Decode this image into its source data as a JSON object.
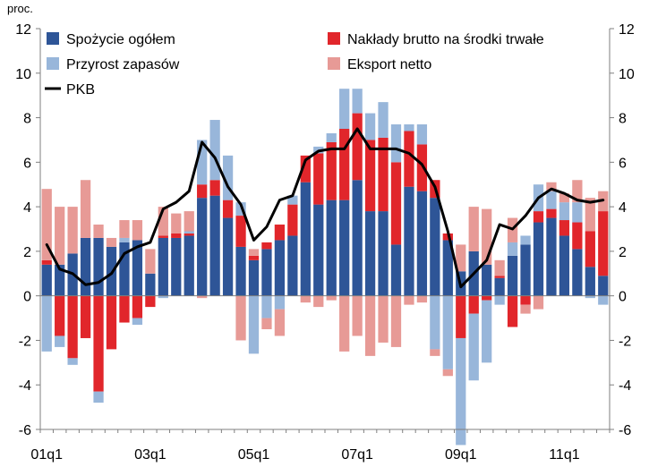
{
  "chart_data": {
    "type": "bar",
    "stacked": true,
    "unit_label": "proc.",
    "ylim": [
      -6,
      12
    ],
    "yticks": [
      -6,
      -4,
      -2,
      0,
      2,
      4,
      6,
      8,
      10,
      12
    ],
    "ylabels": [
      "-6",
      "-4",
      "-2",
      "0",
      "2",
      "4",
      "6",
      "8",
      "10",
      "12"
    ],
    "grid": false,
    "legend": "top",
    "colors": {
      "spozycie": "#2E5597",
      "naklady": "#E1262B",
      "zapasy": "#98B6DA",
      "eksport": "#E79A96",
      "pkb": "#000000"
    },
    "x": [
      "01q1",
      "01q2",
      "01q3",
      "01q4",
      "02q1",
      "02q2",
      "02q3",
      "02q4",
      "03q1",
      "03q2",
      "03q3",
      "03q4",
      "04q1",
      "04q2",
      "04q3",
      "04q4",
      "05q1",
      "05q2",
      "05q3",
      "05q4",
      "06q1",
      "06q2",
      "06q3",
      "06q4",
      "07q1",
      "07q2",
      "07q3",
      "07q4",
      "08q1",
      "08q2",
      "08q3",
      "08q4",
      "09q1",
      "09q2",
      "09q3",
      "09q4",
      "10q1",
      "10q2",
      "10q3",
      "10q4",
      "11q1",
      "11q2",
      "11q3",
      "11q4"
    ],
    "xtick_labels": [
      "01q1",
      "03q1",
      "05q1",
      "07q1",
      "09q1",
      "11q1"
    ],
    "series": [
      {
        "name": "Spożycie ogółem",
        "kind": "bar",
        "color_key": "spozycie",
        "values": [
          1.4,
          1.4,
          1.9,
          2.6,
          2.6,
          2.2,
          2.4,
          2.5,
          1.0,
          2.6,
          2.6,
          2.7,
          4.4,
          4.5,
          3.5,
          2.2,
          1.6,
          2.1,
          2.5,
          2.7,
          5.1,
          4.1,
          4.3,
          4.3,
          5.2,
          3.8,
          3.8,
          2.3,
          4.9,
          4.7,
          4.4,
          2.5,
          1.1,
          2.0,
          1.4,
          0.8,
          1.8,
          2.3,
          3.3,
          3.5,
          2.7,
          2.1,
          1.3,
          0.9
        ]
      },
      {
        "name": "Nakłady brutto na środki trwałe",
        "kind": "bar",
        "color_key": "naklady",
        "values": [
          0.2,
          -1.8,
          -2.8,
          -1.9,
          -4.3,
          -2.4,
          -1.2,
          -1.0,
          -0.5,
          0.1,
          0.2,
          0.1,
          0.6,
          0.7,
          0.8,
          1.4,
          0.2,
          0.3,
          0.7,
          1.4,
          1.2,
          2.3,
          2.6,
          3.2,
          3.0,
          3.2,
          3.3,
          3.7,
          2.5,
          2.1,
          0.8,
          0.3,
          -1.9,
          -0.8,
          -0.2,
          0.1,
          -1.4,
          -0.4,
          0.5,
          0.4,
          0.7,
          1.2,
          1.6,
          2.9
        ]
      },
      {
        "name": "Przyrost zapasów",
        "kind": "bar",
        "color_key": "zapasy",
        "values": [
          -2.5,
          -0.5,
          -0.3,
          0.0,
          -0.5,
          0.0,
          0.2,
          -0.3,
          0.0,
          -0.1,
          0.0,
          0.1,
          2.0,
          2.7,
          2.0,
          0.6,
          -2.6,
          -1.0,
          -0.6,
          0.4,
          0.0,
          0.3,
          0.4,
          1.8,
          1.1,
          1.2,
          1.6,
          1.7,
          0.3,
          0.9,
          -2.4,
          -3.3,
          -4.8,
          -3.0,
          -2.8,
          -0.4,
          0.6,
          0.4,
          1.2,
          0.8,
          0.8,
          0.9,
          -0.1,
          -0.4
        ]
      },
      {
        "name": "Eksport netto",
        "kind": "bar",
        "color_key": "eksport",
        "values": [
          3.2,
          2.6,
          2.1,
          2.6,
          0.6,
          0.4,
          0.8,
          0.9,
          1.1,
          1.3,
          0.9,
          0.9,
          -0.1,
          0.0,
          0.0,
          -2.0,
          0.3,
          -0.5,
          -1.2,
          0.0,
          -0.3,
          -0.5,
          -0.2,
          -2.5,
          -1.8,
          -2.7,
          -2.1,
          -2.3,
          -0.4,
          -0.3,
          -0.3,
          -0.3,
          1.2,
          2.0,
          2.5,
          0.7,
          1.1,
          -0.4,
          -0.6,
          0.4,
          0.4,
          1.0,
          1.5,
          0.9
        ]
      },
      {
        "name": "PKB",
        "kind": "line",
        "color_key": "pkb",
        "values": [
          2.3,
          1.2,
          1.0,
          0.5,
          0.6,
          1.0,
          1.9,
          2.2,
          2.4,
          3.9,
          4.2,
          4.7,
          6.9,
          6.2,
          4.9,
          4.1,
          2.5,
          3.1,
          4.3,
          4.5,
          6.1,
          6.5,
          6.6,
          6.6,
          7.5,
          6.6,
          6.6,
          6.6,
          6.4,
          5.9,
          4.9,
          2.9,
          0.4,
          1.0,
          1.6,
          3.2,
          3.0,
          3.6,
          4.4,
          4.8,
          4.6,
          4.3,
          4.2,
          4.3
        ]
      }
    ]
  }
}
